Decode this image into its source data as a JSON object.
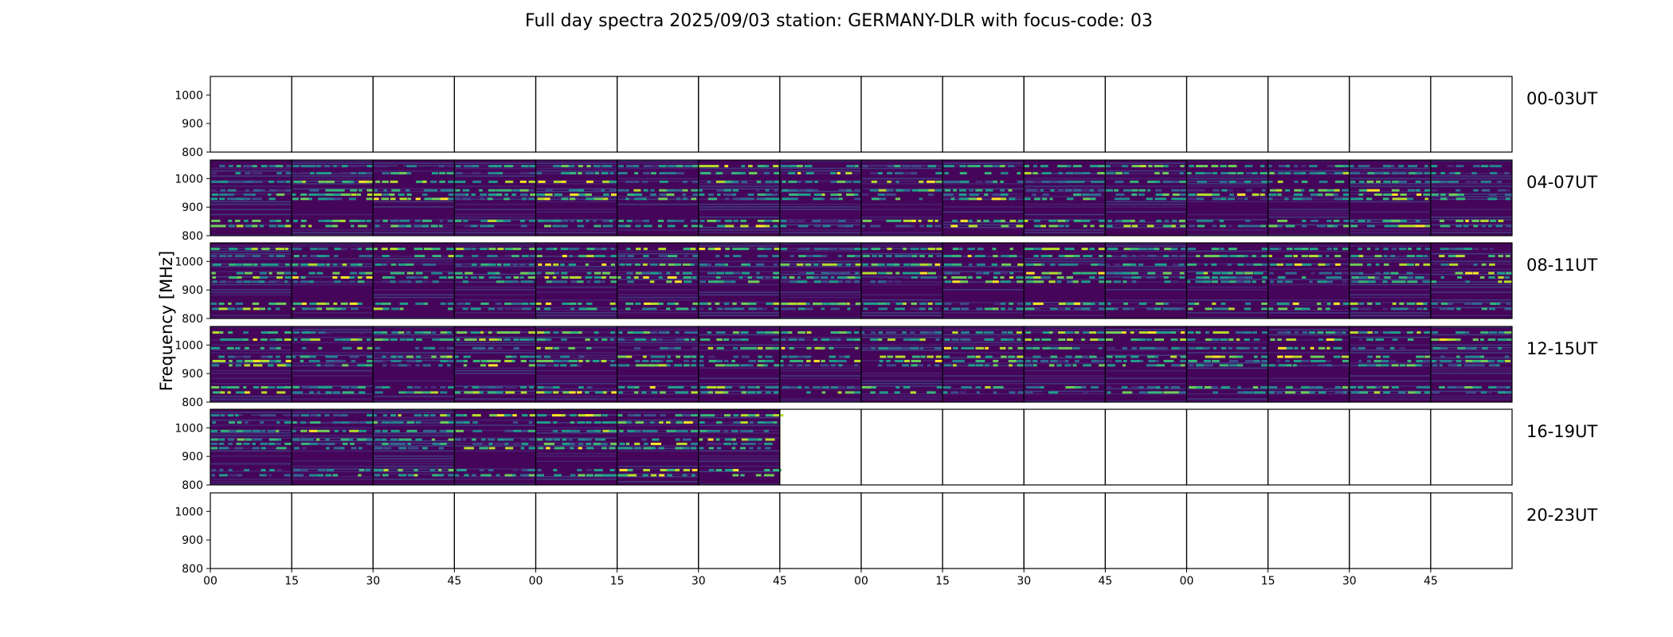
{
  "chart_data": {
    "type": "heatmap",
    "title": "Full day spectra 2025/09/03 station: GERMANY-DLR with focus-code: 03",
    "ylabel": "Frequency [MHz]",
    "xlabel": "",
    "ylim": [
      800,
      1065
    ],
    "y_ticks": [
      800,
      900,
      1000
    ],
    "x_tick_labels": [
      "00",
      "15",
      "30",
      "45",
      "00",
      "15",
      "30",
      "45",
      "00",
      "15",
      "30",
      "45",
      "00",
      "15",
      "30",
      "45"
    ],
    "rows": [
      {
        "label": "00-03UT",
        "filled_panels": 0
      },
      {
        "label": "04-07UT",
        "filled_panels": 16
      },
      {
        "label": "08-11UT",
        "filled_panels": 16
      },
      {
        "label": "12-15UT",
        "filled_panels": 16
      },
      {
        "label": "16-19UT",
        "filled_panels": 7
      },
      {
        "label": "20-23UT",
        "filled_panels": 0
      }
    ],
    "panels_per_row": 16,
    "emission_bands_mhz": [
      835,
      853,
      930,
      945,
      960,
      990,
      1020,
      1045
    ],
    "colormap": [
      "#440154",
      "#482878",
      "#3e4a89",
      "#31688e",
      "#26828e",
      "#1f9e89",
      "#35b779",
      "#6ece58",
      "#b5de2b",
      "#fde725"
    ],
    "background_color": "#45065a",
    "grid": false
  }
}
